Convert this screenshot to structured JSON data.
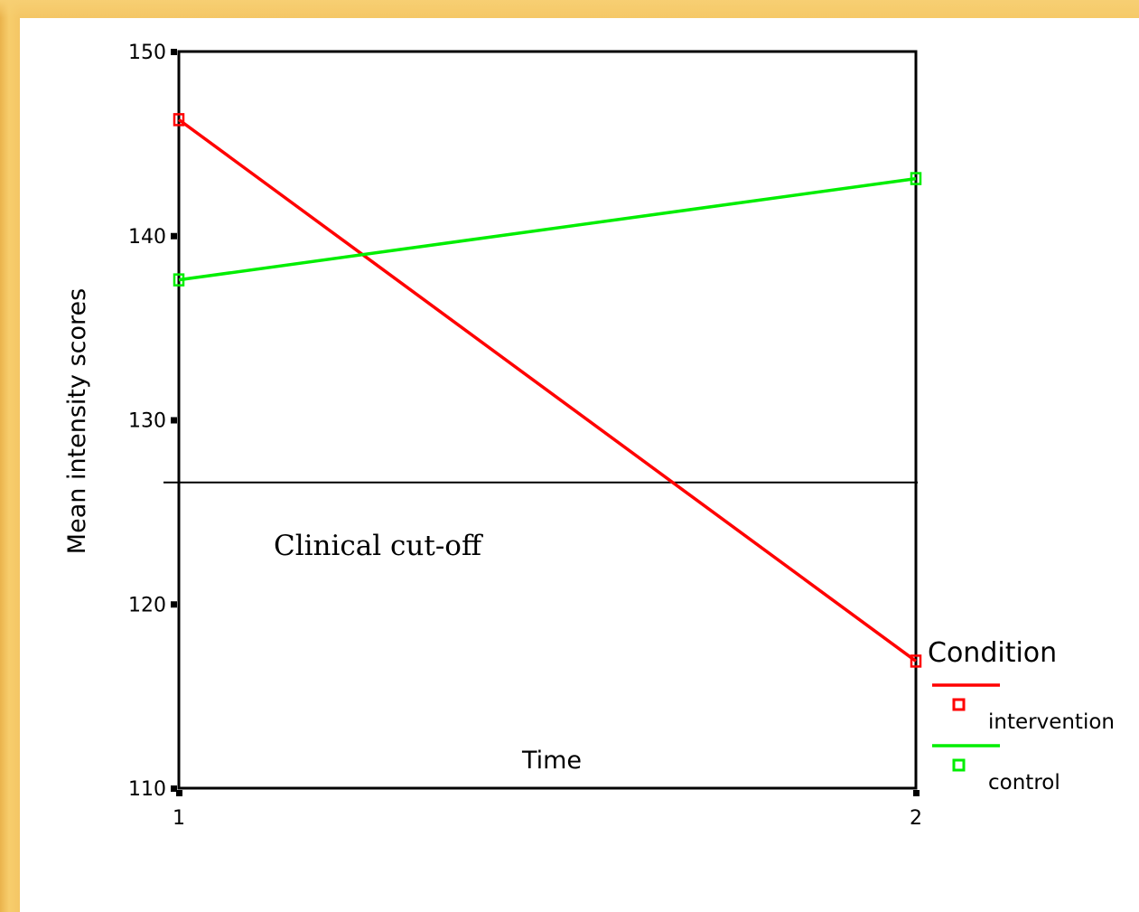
{
  "chart_data": {
    "type": "line",
    "title": "",
    "xlabel": "Time",
    "ylabel": "Mean intensity scores",
    "categories": [
      "1",
      "2"
    ],
    "ylim": [
      110,
      150
    ],
    "yticks": [
      110,
      120,
      130,
      140,
      150
    ],
    "grid": false,
    "series": [
      {
        "name": "intervention",
        "color": "#ff0000",
        "values": [
          146.3,
          116.9
        ]
      },
      {
        "name": "control",
        "color": "#00ee00",
        "values": [
          137.6,
          143.1
        ]
      }
    ],
    "reference_line": {
      "y": 126.6,
      "label": "Clinical cut-off"
    },
    "legend": {
      "title": "Condition",
      "position": "right"
    },
    "marker": "square"
  }
}
